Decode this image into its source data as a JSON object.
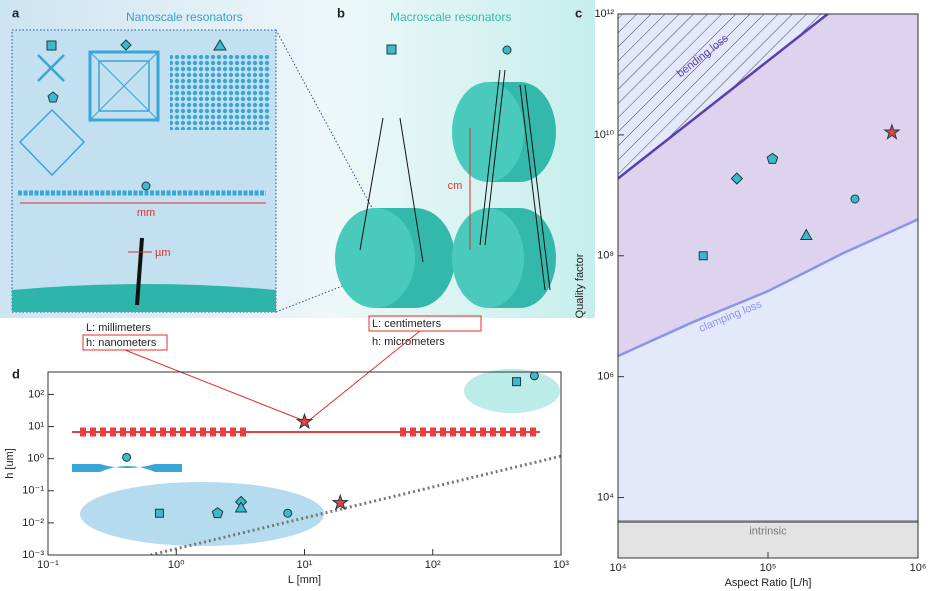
{
  "panels": {
    "a": {
      "letter": "a",
      "title": "Nanoscale resonators",
      "scale_label": "mm",
      "width_label": "µm"
    },
    "b": {
      "letter": "b",
      "title": "Macroscale resonators",
      "scale_label": "cm"
    },
    "captions": [
      "L: millimeters",
      "h: nanometers",
      "L: centimeters",
      "h: micrometers"
    ]
  },
  "chart_data": [
    {
      "type": "scatter",
      "panel": "c",
      "xlabel": "Aspect Ratio [L/h]",
      "ylabel": "Quality factor",
      "xscale": "log",
      "yscale": "log",
      "xlim": [
        10000,
        1000000
      ],
      "ylim": [
        1000,
        1000000000000
      ],
      "xticks": [
        {
          "value": 10000,
          "label": "10⁴"
        },
        {
          "value": 100000,
          "label": "10⁵"
        },
        {
          "value": 1000000,
          "label": "10⁶"
        }
      ],
      "yticks": [
        {
          "value": 10000,
          "label": "10⁴"
        },
        {
          "value": 1000000,
          "label": "10⁶"
        },
        {
          "value": 100000000,
          "label": "10⁸"
        },
        {
          "value": 10000000000,
          "label": "10¹⁰"
        },
        {
          "value": 1000000000000,
          "label": "10¹²"
        }
      ],
      "curves": [
        {
          "label": "bending loss",
          "color": "#5a3fae",
          "x": [
            10000,
            250000
          ],
          "y": [
            1900000000,
            1000000000000
          ]
        },
        {
          "label": "clamping loss",
          "color": "#8c93ee",
          "x": [
            10000,
            31623,
            100000,
            316228,
            1000000
          ],
          "y": [
            2200000,
            8000000,
            26000000,
            110000000,
            400000000
          ]
        },
        {
          "label": "intrinsic",
          "color": "#777777",
          "x": [
            10000,
            1000000
          ],
          "y": [
            4000,
            4000
          ]
        }
      ],
      "points": {
        "x": [
          37000,
          62000,
          107000,
          180000,
          380000,
          670000
        ],
        "y": [
          100000000,
          1900000000,
          4000000000,
          220000000,
          870000000,
          11000000000
        ],
        "markers": [
          "square",
          "diamond",
          "pentagon",
          "triangle",
          "circle",
          "star"
        ],
        "colors": [
          "#3fb8c8",
          "#3fb8c8",
          "#3fb8c8",
          "#3fb8c8",
          "#3fb8c8",
          "#e8403f"
        ]
      }
    },
    {
      "type": "scatter",
      "panel": "d",
      "xlabel": "L [mm]",
      "ylabel": "h [um]",
      "xscale": "log",
      "yscale": "log",
      "xlim": [
        0.1,
        1000
      ],
      "ylim": [
        0.001,
        500
      ],
      "xticks": [
        {
          "value": 0.1,
          "label": "10⁻¹"
        },
        {
          "value": 1,
          "label": "10⁰"
        },
        {
          "value": 10,
          "label": "10¹"
        },
        {
          "value": 100,
          "label": "10²"
        },
        {
          "value": 1000,
          "label": "10³"
        }
      ],
      "yticks": [
        {
          "value": 0.001,
          "label": "10⁻³"
        },
        {
          "value": 0.01,
          "label": "10⁻²"
        },
        {
          "value": 0.1,
          "label": "10⁻¹"
        },
        {
          "value": 1,
          "label": "10⁰"
        },
        {
          "value": 10,
          "label": "10¹"
        },
        {
          "value": 100,
          "label": "10²"
        }
      ],
      "curves": [
        {
          "color": "#777777",
          "x": [
            0.63,
            1000
          ],
          "y": [
            0.001,
            1.2
          ]
        }
      ],
      "points": {
        "x": [
          0.41,
          0.74,
          2.1,
          3.2,
          3.2,
          7.4,
          19,
          10,
          450,
          620
        ],
        "y": [
          1.1,
          0.02,
          0.02,
          0.045,
          0.03,
          0.02,
          0.042,
          14,
          250,
          380
        ],
        "markers": [
          "circle",
          "square",
          "pentagon",
          "diamond",
          "triangle",
          "circle",
          "star",
          "star",
          "square",
          "circle"
        ],
        "colors": [
          "#3fb8c8",
          "#3fb8c8",
          "#3fb8c8",
          "#3fb8c8",
          "#3fb8c8",
          "#3fb8c8",
          "#e8403f",
          "#e8403f",
          "#3fb8c8",
          "#3fb8c8"
        ]
      }
    }
  ]
}
